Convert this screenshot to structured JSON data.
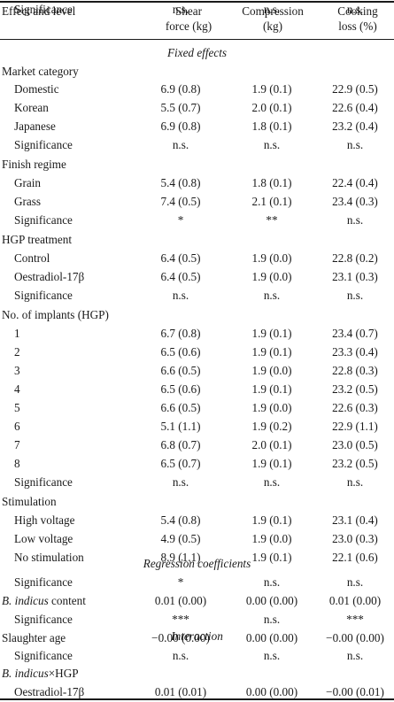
{
  "header": {
    "col0": "Effect and level",
    "col1_line1": "Shear",
    "col1_line2": "force (kg)",
    "col2_line1": "Compression",
    "col2_line2": "(kg)",
    "col3_line1": "Cooking",
    "col3_line2": "loss (%)"
  },
  "sections": {
    "fixed": "Fixed effects",
    "regression": "Regression coefficients",
    "interaction": "Interaction"
  },
  "rows": [
    {
      "label": "Market category",
      "indent": false,
      "v": [
        "",
        "",
        ""
      ]
    },
    {
      "label": "Domestic",
      "indent": true,
      "v": [
        "6.9 (0.8)",
        "1.9 (0.1)",
        "22.9 (0.5)"
      ]
    },
    {
      "label": "Korean",
      "indent": true,
      "v": [
        "5.5 (0.7)",
        "2.0 (0.1)",
        "22.6 (0.4)"
      ]
    },
    {
      "label": "Japanese",
      "indent": true,
      "v": [
        "6.9 (0.8)",
        "1.8 (0.1)",
        "23.2 (0.4)"
      ]
    },
    {
      "label": "Significance",
      "indent": true,
      "v": [
        "n.s.",
        "n.s.",
        "n.s."
      ]
    },
    {
      "label": "Finish regime",
      "indent": false,
      "v": [
        "",
        "",
        ""
      ]
    },
    {
      "label": "Grain",
      "indent": true,
      "v": [
        "5.4 (0.8)",
        "1.8 (0.1)",
        "22.4 (0.4)"
      ]
    },
    {
      "label": "Grass",
      "indent": true,
      "v": [
        "7.4 (0.5)",
        "2.1 (0.1)",
        "23.4 (0.3)"
      ]
    },
    {
      "label": "Significance",
      "indent": true,
      "v": [
        "*",
        "**",
        "n.s."
      ]
    },
    {
      "label": "HGP treatment",
      "indent": false,
      "v": [
        "",
        "",
        ""
      ]
    },
    {
      "label": "Control",
      "indent": true,
      "v": [
        "6.4 (0.5)",
        "1.9 (0.0)",
        "22.8 (0.2)"
      ]
    },
    {
      "label": "Oestradiol-17β",
      "indent": true,
      "v": [
        "6.4 (0.5)",
        "1.9 (0.0)",
        "23.1 (0.3)"
      ]
    },
    {
      "label": "Significance",
      "indent": true,
      "v": [
        "n.s.",
        "n.s.",
        "n.s."
      ]
    },
    {
      "label": "No. of implants (HGP)",
      "indent": false,
      "v": [
        "",
        "",
        ""
      ]
    },
    {
      "label": "1",
      "indent": true,
      "v": [
        "6.7 (0.8)",
        "1.9 (0.1)",
        "23.4 (0.7)"
      ]
    },
    {
      "label": "2",
      "indent": true,
      "v": [
        "6.5 (0.6)",
        "1.9 (0.1)",
        "23.3 (0.4)"
      ]
    },
    {
      "label": "3",
      "indent": true,
      "v": [
        "6.6 (0.5)",
        "1.9 (0.0)",
        "22.8 (0.3)"
      ]
    },
    {
      "label": "4",
      "indent": true,
      "v": [
        "6.5 (0.6)",
        "1.9 (0.1)",
        "23.2 (0.5)"
      ]
    },
    {
      "label": "5",
      "indent": true,
      "v": [
        "6.6 (0.5)",
        "1.9 (0.0)",
        "22.6 (0.3)"
      ]
    },
    {
      "label": "6",
      "indent": true,
      "v": [
        "5.1 (1.1)",
        "1.9 (0.2)",
        "22.9 (1.1)"
      ]
    },
    {
      "label": "7",
      "indent": true,
      "v": [
        "6.8 (0.7)",
        "2.0 (0.1)",
        "23.0 (0.5)"
      ]
    },
    {
      "label": "8",
      "indent": true,
      "v": [
        "6.5 (0.7)",
        "1.9 (0.1)",
        "23.2 (0.5)"
      ]
    },
    {
      "label": "Significance",
      "indent": true,
      "v": [
        "n.s.",
        "n.s.",
        "n.s."
      ]
    },
    {
      "label": "Stimulation",
      "indent": false,
      "v": [
        "",
        "",
        ""
      ]
    },
    {
      "label": "High voltage",
      "indent": true,
      "v": [
        "5.4 (0.8)",
        "1.9 (0.1)",
        "23.1 (0.4)"
      ]
    },
    {
      "label": "Low voltage",
      "indent": true,
      "v": [
        "4.9 (0.5)",
        "1.9 (0.0)",
        "23.0 (0.3)"
      ]
    },
    {
      "label": "No stimulation",
      "indent": true,
      "v": [
        "8.9 (1.1)",
        "1.9 (0.1)",
        "22.1 (0.6)"
      ]
    },
    {
      "label": "Significance",
      "indent": true,
      "v": [
        "*",
        "n.s.",
        "n.s."
      ]
    },
    {
      "label_italic": "B. indicus",
      "label": " content",
      "indent": false,
      "v": [
        "0.01 (0.00)",
        "0.00 (0.00)",
        "0.01 (0.00)"
      ]
    },
    {
      "label": "Significance",
      "indent": true,
      "v": [
        "***",
        "n.s.",
        "***"
      ]
    },
    {
      "label": "Slaughter age",
      "indent": false,
      "v": [
        "−0.00 (0.00)",
        "0.00 (0.00)",
        "−0.00 (0.00)"
      ]
    },
    {
      "label": "Significance",
      "indent": true,
      "v": [
        "n.s.",
        "n.s.",
        "n.s."
      ]
    },
    {
      "label_italic": "B. indicus",
      "label": "×HGP",
      "indent": false,
      "v": [
        "",
        "",
        ""
      ]
    },
    {
      "label": "Oestradiol-17β",
      "indent": true,
      "v": [
        "0.01 (0.01)",
        "0.00 (0.00)",
        "−0.00 (0.01)"
      ]
    },
    {
      "label": "Significance",
      "indent": true,
      "v": [
        "n.s.",
        "n.s.",
        "n.s."
      ]
    }
  ]
}
